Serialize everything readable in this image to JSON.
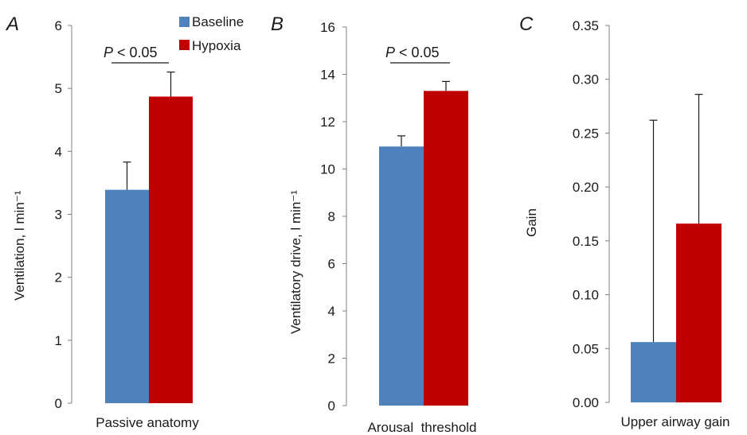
{
  "legend": {
    "position": "top",
    "items": [
      {
        "label": "Baseline",
        "color": "#4f81bd"
      },
      {
        "label": "Hypoxia",
        "color": "#c00000"
      }
    ]
  },
  "chart_data": [
    {
      "type": "bar",
      "panel": "A",
      "categories": [
        "Passive anatomy"
      ],
      "series": [
        {
          "name": "Baseline",
          "values": [
            3.39
          ],
          "error": [
            0.44
          ],
          "color": "#4f81bd"
        },
        {
          "name": "Hypoxia",
          "values": [
            4.87
          ],
          "error": [
            0.39
          ],
          "color": "#c00000"
        }
      ],
      "ylabel": "Ventilation, l min⁻¹",
      "ylim": [
        0,
        6
      ],
      "yticks": [
        "0",
        "1",
        "2",
        "3",
        "4",
        "5",
        "6"
      ],
      "annotation": {
        "italic": "P",
        "text": " < 0.05"
      },
      "grid": false
    },
    {
      "type": "bar",
      "panel": "B",
      "categories": [
        "Arousal  threshold"
      ],
      "series": [
        {
          "name": "Baseline",
          "values": [
            10.95
          ],
          "error": [
            0.45
          ],
          "color": "#4f81bd"
        },
        {
          "name": "Hypoxia",
          "values": [
            13.3
          ],
          "error": [
            0.4
          ],
          "color": "#c00000"
        }
      ],
      "ylabel": "Ventilatory drive, l min⁻¹",
      "ylim": [
        0,
        16
      ],
      "yticks": [
        "0",
        "2",
        "4",
        "6",
        "8",
        "10",
        "12",
        "14",
        "16"
      ],
      "annotation": {
        "italic": "P",
        "text": " < 0.05"
      },
      "grid": false
    },
    {
      "type": "bar",
      "panel": "C",
      "categories": [
        "Upper airway gain"
      ],
      "series": [
        {
          "name": "Baseline",
          "values": [
            0.056
          ],
          "error": [
            0.206
          ],
          "color": "#4f81bd"
        },
        {
          "name": "Hypoxia",
          "values": [
            0.166
          ],
          "error": [
            0.12
          ],
          "color": "#c00000"
        }
      ],
      "ylabel": "Gain",
      "ylim": [
        0,
        0.35
      ],
      "yticks": [
        "0.00",
        "0.05",
        "0.10",
        "0.15",
        "0.20",
        "0.25",
        "0.30",
        "0.35"
      ],
      "annotation": null,
      "grid": false
    }
  ]
}
